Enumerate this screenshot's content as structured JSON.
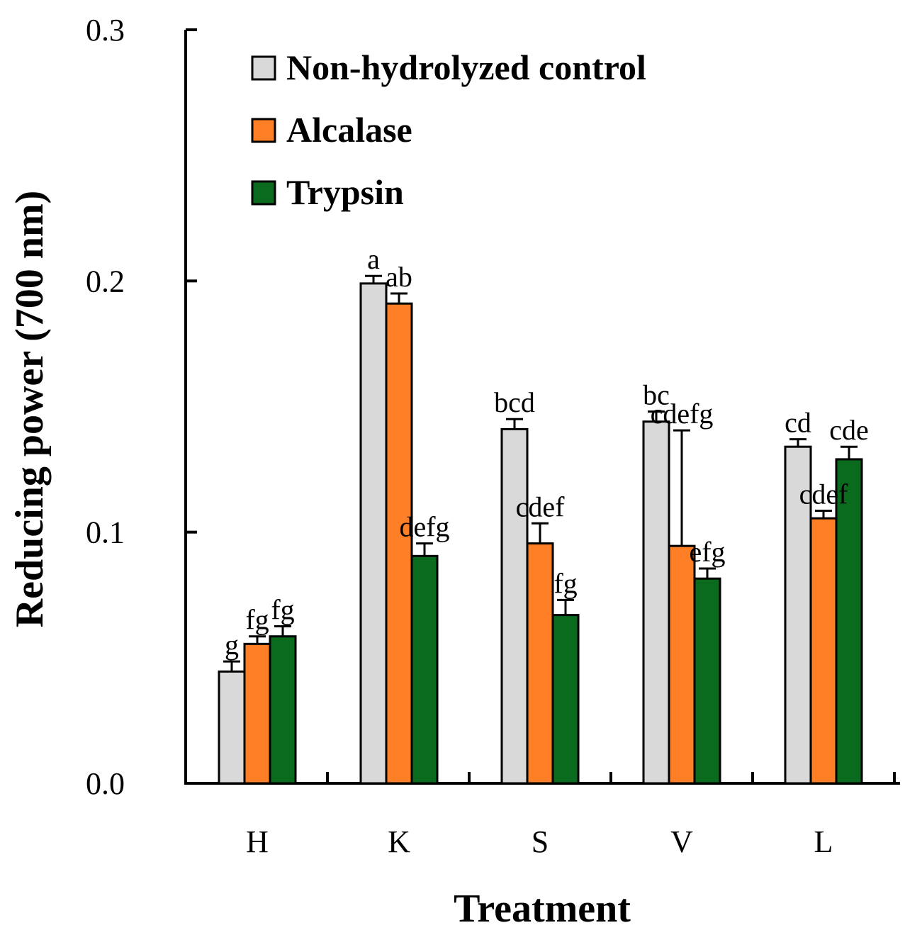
{
  "chart_data": {
    "type": "bar",
    "xlabel": "Treatment",
    "ylabel": "Reducing power (700 nm)",
    "ylim": [
      0,
      0.3
    ],
    "yticks": [
      0.0,
      0.1,
      0.2,
      0.3
    ],
    "ytick_labels": [
      "0.0",
      "0.1",
      "0.2",
      "0.3"
    ],
    "categories": [
      "H",
      "K",
      "S",
      "V",
      "L"
    ],
    "series": [
      {
        "name": "Non-hydrolyzed control",
        "color": "#d9d9d9",
        "values": [
          0.0445,
          0.199,
          0.141,
          0.144,
          0.134
        ],
        "errors": [
          0.004,
          0.003,
          0.004,
          0.004,
          0.003
        ],
        "labels": [
          "g",
          "a",
          "bcd",
          "bc",
          "cd"
        ]
      },
      {
        "name": "Alcalase",
        "color": "#ff7f27",
        "values": [
          0.0555,
          0.191,
          0.0955,
          0.0945,
          0.1055
        ],
        "errors": [
          0.003,
          0.004,
          0.008,
          0.046,
          0.003
        ],
        "labels": [
          "fg",
          "ab",
          "cdef",
          "cdefg",
          "cdef"
        ]
      },
      {
        "name": "Trypsin",
        "color": "#0a6b1e",
        "values": [
          0.0585,
          0.0905,
          0.067,
          0.0815,
          0.129
        ],
        "errors": [
          0.004,
          0.005,
          0.006,
          0.004,
          0.005
        ],
        "labels": [
          "fg",
          "defg",
          "fg",
          "efg",
          "cde"
        ]
      }
    ],
    "legend_position": "top-left",
    "grid": false
  }
}
